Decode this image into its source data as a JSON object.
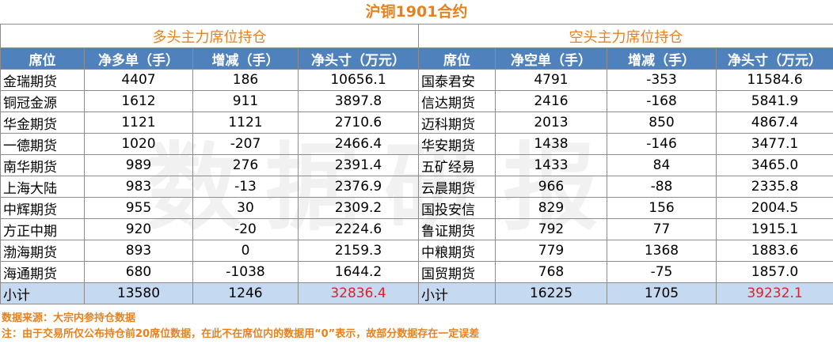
{
  "title": "沪铜1901合约",
  "long_section": "多头主力席位持仓",
  "short_section": "空头主力席位持仓",
  "headers": {
    "long": [
      "席位",
      "净多单（手）",
      "增减（手）",
      "净头寸（万元）"
    ],
    "short": [
      "席位",
      "净空单（手）",
      "增减（手）",
      "净头寸（万元）"
    ]
  },
  "rows": [
    {
      "long": [
        "金瑞期货",
        "4407",
        "186",
        "10656.1"
      ],
      "short": [
        "国泰君安",
        "4791",
        "-353",
        "11584.6"
      ]
    },
    {
      "long": [
        "铜冠金源",
        "1612",
        "911",
        "3897.8"
      ],
      "short": [
        "信达期货",
        "2416",
        "-168",
        "5841.9"
      ]
    },
    {
      "long": [
        "华金期货",
        "1121",
        "1121",
        "2710.6"
      ],
      "short": [
        "迈科期货",
        "2013",
        "850",
        "4867.4"
      ]
    },
    {
      "long": [
        "一德期货",
        "1020",
        "-207",
        "2466.4"
      ],
      "short": [
        "华安期货",
        "1438",
        "-146",
        "3477.1"
      ]
    },
    {
      "long": [
        "南华期货",
        "989",
        "276",
        "2391.4"
      ],
      "short": [
        "五矿经易",
        "1433",
        "84",
        "3465.0"
      ]
    },
    {
      "long": [
        "上海大陆",
        "983",
        "-13",
        "2376.9"
      ],
      "short": [
        "云晨期货",
        "966",
        "-88",
        "2335.8"
      ]
    },
    {
      "long": [
        "中辉期货",
        "955",
        "30",
        "2309.2"
      ],
      "short": [
        "国投安信",
        "829",
        "156",
        "2004.5"
      ]
    },
    {
      "long": [
        "方正中期",
        "920",
        "-20",
        "2224.6"
      ],
      "short": [
        "鲁证期货",
        "792",
        "77",
        "1915.1"
      ]
    },
    {
      "long": [
        "渤海期货",
        "893",
        "0",
        "2159.3"
      ],
      "short": [
        "中粮期货",
        "779",
        "1368",
        "1883.6"
      ]
    },
    {
      "long": [
        "海通期货",
        "680",
        "-1038",
        "1644.2"
      ],
      "short": [
        "国贸期货",
        "768",
        "-75",
        "1857.0"
      ]
    }
  ],
  "subtotal": {
    "long": [
      "小计",
      "13580",
      "1246",
      "32836.4"
    ],
    "short": [
      "小计",
      "16225",
      "1705",
      "39232.1"
    ]
  },
  "notes": {
    "source": "数据来源：大宗内参持仓数据",
    "note": "注：由于交易所仅公布持仓前20席位数据，在此不在席位内的数据用“0”表示，故部分数据存在一定误差"
  },
  "colors": {
    "title": "#e8811c",
    "header_bg": "#4f81bd",
    "subtotal_bg": "#c5d9f1",
    "highlight": "#e0202a"
  }
}
